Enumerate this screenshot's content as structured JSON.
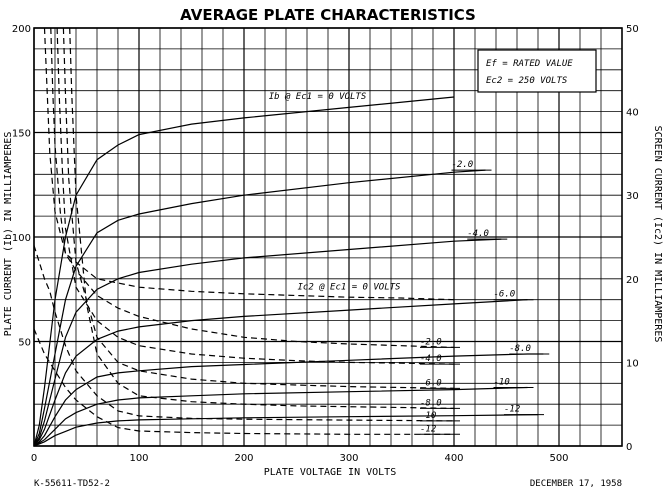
{
  "chart_data": {
    "type": "line",
    "title": "AVERAGE PLATE CHARACTERISTICS",
    "xlabel": "PLATE VOLTAGE IN VOLTS",
    "ylabel": "PLATE CURRENT (Ib) IN MILLIAMPERES",
    "y2label": "SCREEN CURRENT (Ic2) IN MILLIAMPERES",
    "xlim": [
      0,
      560
    ],
    "ylim": [
      0,
      200
    ],
    "y2lim": [
      0,
      50
    ],
    "x_ticks": [
      "0",
      "100",
      "200",
      "300",
      "400",
      "500"
    ],
    "y_ticks": [
      "50",
      "100",
      "150",
      "200"
    ],
    "y2_ticks": [
      "0",
      "10",
      "20",
      "30",
      "40",
      "50"
    ],
    "grid": true,
    "conditions": [
      "Ef = RATED VALUE",
      "Ec2 = 250 VOLTS"
    ],
    "footer_left": "K-55611-TD52-2",
    "footer_right": "DECEMBER 17, 1958",
    "plate_current": {
      "axis": "left",
      "style": "solid",
      "heading": "Ib @ Ec1 = 0 VOLTS",
      "series": [
        {
          "name": "Ec1 = 0 VOLTS",
          "label": "",
          "x": [
            0,
            5,
            10,
            20,
            30,
            40,
            60,
            80,
            100,
            150,
            200,
            300,
            400
          ],
          "y": [
            0,
            10,
            28,
            70,
            100,
            120,
            137,
            144,
            149,
            154,
            157,
            162,
            167
          ]
        },
        {
          "name": "-2.0",
          "label": "-2.0",
          "x": [
            0,
            5,
            10,
            20,
            30,
            40,
            60,
            80,
            100,
            150,
            200,
            300,
            400,
            430
          ],
          "y": [
            0,
            6,
            18,
            44,
            70,
            86,
            102,
            108,
            111,
            116,
            120,
            126,
            131,
            132
          ]
        },
        {
          "name": "-4.0",
          "label": "-4.0",
          "x": [
            0,
            5,
            10,
            20,
            30,
            40,
            60,
            80,
            100,
            150,
            200,
            300,
            400,
            445
          ],
          "y": [
            0,
            4,
            12,
            32,
            52,
            64,
            75,
            80,
            83,
            87,
            90,
            94,
            98,
            99
          ]
        },
        {
          "name": "-6.0",
          "label": "-6.0",
          "x": [
            0,
            5,
            10,
            20,
            30,
            40,
            60,
            80,
            100,
            150,
            200,
            300,
            400,
            470
          ],
          "y": [
            0,
            3,
            8,
            22,
            35,
            43,
            51,
            55,
            57,
            60,
            62,
            65,
            68,
            70
          ]
        },
        {
          "name": "-8.0",
          "label": "-8.0",
          "x": [
            0,
            5,
            10,
            20,
            30,
            40,
            60,
            80,
            100,
            150,
            200,
            300,
            400,
            470,
            485
          ],
          "y": [
            0,
            2,
            5,
            14,
            22,
            27,
            33,
            35,
            36,
            38,
            39,
            41,
            43,
            44,
            44
          ]
        },
        {
          "name": "-10",
          "label": "-10",
          "x": [
            0,
            5,
            10,
            20,
            30,
            40,
            60,
            80,
            100,
            150,
            200,
            300,
            400,
            470
          ],
          "y": [
            0,
            1.5,
            3,
            8,
            13,
            16,
            20,
            22,
            23,
            24,
            25,
            26,
            27,
            28
          ]
        },
        {
          "name": "-12",
          "label": "-12",
          "x": [
            0,
            5,
            10,
            20,
            30,
            40,
            60,
            80,
            100,
            150,
            200,
            300,
            400,
            480
          ],
          "y": [
            0,
            1,
            2,
            5,
            7,
            9,
            11,
            12,
            12.5,
            13,
            13.5,
            14,
            14.5,
            15
          ]
        }
      ]
    },
    "screen_current": {
      "axis": "right",
      "style": "dashed",
      "heading": "Ic2 @ Ec1 = 0 VOLTS",
      "series": [
        {
          "name": "Ec1 = 0 VOLTS",
          "label": "",
          "x": [
            10,
            12,
            15,
            20,
            30,
            40,
            60,
            80,
            100,
            150,
            200,
            250,
            300,
            350,
            400
          ],
          "y": [
            50,
            44,
            35,
            28,
            23,
            22,
            20,
            19.5,
            19,
            18.5,
            18.2,
            18,
            17.8,
            17.7,
            17.5
          ]
        },
        {
          "name": "-2.0",
          "label": "-2.0",
          "x": [
            16,
            18,
            20,
            25,
            30,
            40,
            60,
            80,
            100,
            150,
            200,
            250,
            300,
            350,
            400
          ],
          "y": [
            50,
            42,
            36,
            28,
            23,
            21,
            18,
            16.5,
            15.5,
            14,
            13,
            12.5,
            12.2,
            12,
            11.8
          ]
        },
        {
          "name": "-4.0",
          "label": "-4.0",
          "x": [
            22,
            24,
            27,
            30,
            40,
            60,
            80,
            100,
            150,
            200,
            250,
            300,
            350,
            400
          ],
          "y": [
            50,
            42,
            33,
            26,
            19,
            15,
            13,
            12,
            11,
            10.5,
            10.2,
            10,
            9.9,
            9.8
          ]
        },
        {
          "name": "-6.0",
          "label": "-6.0",
          "x": [
            28,
            30,
            33,
            40,
            60,
            80,
            100,
            150,
            200,
            250,
            300,
            350,
            400
          ],
          "y": [
            50,
            42,
            32,
            22,
            13,
            10,
            9,
            8,
            7.5,
            7.3,
            7.1,
            7,
            6.9
          ]
        },
        {
          "name": "-8.0",
          "label": "-8.0",
          "x": [
            34,
            36,
            40,
            50,
            60,
            80,
            100,
            150,
            200,
            250,
            300,
            350,
            400
          ],
          "y": [
            50,
            42,
            30,
            17,
            11,
            7.5,
            6,
            5.3,
            5,
            4.8,
            4.7,
            4.6,
            4.5
          ]
        },
        {
          "name": "-10",
          "label": "-10",
          "x": [
            0,
            10,
            15,
            20,
            30,
            40,
            60,
            80,
            100,
            150,
            200,
            300,
            400
          ],
          "y": [
            24,
            20,
            18.5,
            16,
            12,
            9,
            6,
            4.2,
            3.6,
            3.3,
            3.2,
            3.1,
            3.0
          ]
        },
        {
          "name": "-12",
          "label": "-12",
          "x": [
            0,
            10,
            20,
            30,
            40,
            60,
            80,
            100,
            150,
            200,
            300,
            400
          ],
          "y": [
            14,
            11,
            9,
            7,
            5.5,
            3.5,
            2.2,
            1.8,
            1.6,
            1.5,
            1.4,
            1.4
          ]
        }
      ]
    }
  }
}
